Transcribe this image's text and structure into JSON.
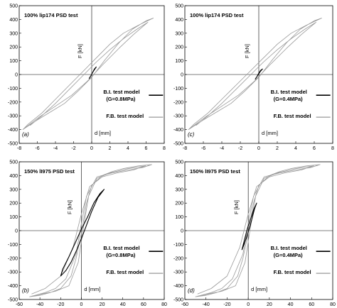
{
  "chart_data": [
    {
      "type": "line",
      "panel_label": "(a)",
      "title": "100% lip174 PSD test",
      "xlabel": "d [mm]",
      "ylabel": "F [kN]",
      "xlim": [
        -8,
        8
      ],
      "ylim": [
        -500,
        500
      ],
      "xticks": [
        "-8",
        "-6",
        "-4",
        "-2",
        "0",
        "2",
        "4",
        "6",
        "8"
      ],
      "yticks": [
        "500",
        "400",
        "300",
        "200",
        "100",
        "0",
        "-100",
        "-200",
        "-300",
        "-400",
        "-500"
      ],
      "legend": [
        "B.I. test model",
        "(G=0.8MPa)",
        "F.B. test model"
      ],
      "series": [
        {
          "name": "F.B. test model",
          "color": "#999999",
          "x": [
            -7.6,
            -6.0,
            -4.5,
            -3.0,
            -1.5,
            0,
            1.5,
            3.0,
            4.5,
            6.0,
            6.8,
            5.2,
            3.5,
            2.0,
            0.5,
            -1.0,
            -2.5,
            -4.0,
            -5.5,
            -7.0,
            -7.6,
            -5.8,
            -4.0,
            -2.2,
            -0.5,
            1.2,
            3.0,
            4.6,
            6.2,
            5.0,
            3.5,
            2.0,
            0.5,
            -1.0,
            -2.5,
            -4.0,
            -5.5,
            -6.8
          ],
          "y": [
            -400,
            -330,
            -270,
            -210,
            -120,
            -20,
            110,
            230,
            330,
            390,
            410,
            360,
            300,
            220,
            120,
            20,
            -80,
            -180,
            -280,
            -360,
            -400,
            -310,
            -230,
            -150,
            -50,
            70,
            190,
            290,
            380,
            330,
            260,
            180,
            90,
            -10,
            -110,
            -210,
            -300,
            -370
          ]
        },
        {
          "name": "B.I. test model",
          "color": "#000000",
          "x": [
            -0.3,
            -0.1,
            0.1,
            0.3,
            0.5,
            0.3,
            0.1,
            -0.1,
            -0.3
          ],
          "y": [
            -30,
            -10,
            15,
            35,
            55,
            40,
            15,
            -10,
            -30
          ]
        }
      ]
    },
    {
      "type": "line",
      "panel_label": "(c)",
      "title": "100% lip174 PSD test",
      "xlabel": "d [mm]",
      "ylabel": "F [kN]",
      "xlim": [
        -8,
        8
      ],
      "ylim": [
        -500,
        500
      ],
      "xticks": [
        "-8",
        "-6",
        "-4",
        "-2",
        "0",
        "2",
        "4",
        "6",
        "8"
      ],
      "yticks": [
        "500",
        "400",
        "300",
        "200",
        "100",
        "0",
        "-100",
        "-200",
        "-300",
        "-400",
        "-500"
      ],
      "legend": [
        "B.I. test model",
        "(G=0.4MPa)",
        "F.B. test model"
      ],
      "series": [
        {
          "name": "F.B. test model",
          "color": "#999999",
          "x": [
            -7.6,
            -6.0,
            -4.5,
            -3.0,
            -1.5,
            0,
            1.5,
            3.0,
            4.5,
            6.0,
            6.8,
            5.2,
            3.5,
            2.0,
            0.5,
            -1.0,
            -2.5,
            -4.0,
            -5.5,
            -7.0,
            -7.6,
            -5.8,
            -4.0,
            -2.2,
            -0.5,
            1.2,
            3.0,
            4.6,
            6.2,
            5.0,
            3.5,
            2.0,
            0.5,
            -1.0,
            -2.5,
            -4.0,
            -5.5,
            -6.8
          ],
          "y": [
            -400,
            -330,
            -270,
            -210,
            -120,
            -20,
            110,
            230,
            330,
            390,
            410,
            360,
            300,
            220,
            120,
            20,
            -80,
            -180,
            -280,
            -360,
            -400,
            -310,
            -230,
            -150,
            -50,
            70,
            190,
            290,
            380,
            330,
            260,
            180,
            90,
            -10,
            -110,
            -210,
            -300,
            -370
          ]
        },
        {
          "name": "B.I. test model",
          "color": "#000000",
          "x": [
            -0.4,
            -0.2,
            0.0,
            0.2,
            0.4,
            0.2,
            0.0,
            -0.2,
            -0.4
          ],
          "y": [
            -35,
            -15,
            5,
            25,
            40,
            30,
            10,
            -15,
            -35
          ]
        }
      ]
    },
    {
      "type": "line",
      "panel_label": "(b)",
      "title": "150% lI975 PSD test",
      "xlabel": "d [mm]",
      "ylabel": "F [kN]",
      "xlim": [
        -60,
        80
      ],
      "ylim": [
        -500,
        500
      ],
      "xticks": [
        "-60",
        "-40",
        "-20",
        "0",
        "20",
        "40",
        "60",
        "80"
      ],
      "yticks": [
        "500",
        "400",
        "300",
        "200",
        "100",
        "0",
        "-100",
        "-200",
        "-300",
        "-400",
        "-500"
      ],
      "legend": [
        "B.I. test model",
        "(G=0.8MPa)",
        "F.B. test model"
      ],
      "series": [
        {
          "name": "F.B. test model",
          "color": "#999999",
          "x": [
            -50,
            -40,
            -30,
            -20,
            -10,
            -5,
            0,
            5,
            10,
            20,
            30,
            40,
            55,
            68,
            60,
            45,
            30,
            15,
            5,
            0,
            -5,
            -15,
            -25,
            -35,
            -45,
            -50,
            -38,
            -25,
            -12,
            -3,
            2,
            7,
            15,
            28,
            45,
            62,
            50,
            35,
            20,
            8,
            0,
            -8,
            -20,
            -35,
            -48
          ],
          "y": [
            -480,
            -470,
            -450,
            -420,
            -330,
            -200,
            -20,
            200,
            330,
            400,
            430,
            450,
            470,
            480,
            460,
            440,
            420,
            390,
            250,
            50,
            -170,
            -350,
            -420,
            -450,
            -470,
            -480,
            -460,
            -440,
            -400,
            -230,
            20,
            250,
            380,
            420,
            450,
            470,
            440,
            420,
            390,
            320,
            120,
            -120,
            -330,
            -420,
            -460
          ]
        },
        {
          "name": "B.I. test model",
          "color": "#000000",
          "x": [
            -20,
            -15,
            -10,
            -5,
            0,
            5,
            10,
            16,
            22,
            18,
            12,
            6,
            0,
            -6,
            -12,
            -18,
            -20
          ],
          "y": [
            -330,
            -290,
            -230,
            -150,
            -60,
            40,
            140,
            240,
            300,
            270,
            200,
            100,
            10,
            -90,
            -190,
            -280,
            -330
          ]
        }
      ]
    },
    {
      "type": "line",
      "panel_label": "(d)",
      "title": "150% lI975 PSD test",
      "xlabel": "d [mm]",
      "ylabel": "F [kN]",
      "xlim": [
        -60,
        80
      ],
      "ylim": [
        -500,
        500
      ],
      "xticks": [
        "-60",
        "-40",
        "-20",
        "0",
        "20",
        "40",
        "60",
        "80"
      ],
      "yticks": [
        "500",
        "400",
        "300",
        "200",
        "100",
        "0",
        "-100",
        "-200",
        "-300",
        "-400",
        "-500"
      ],
      "legend": [
        "B.I. test model",
        "(G=0.4MPa)",
        "F.B. test model"
      ],
      "series": [
        {
          "name": "F.B. test model",
          "color": "#999999",
          "x": [
            -50,
            -40,
            -30,
            -20,
            -10,
            -5,
            0,
            5,
            10,
            20,
            30,
            40,
            55,
            68,
            60,
            45,
            30,
            15,
            5,
            0,
            -5,
            -15,
            -25,
            -35,
            -45,
            -50,
            -38,
            -25,
            -12,
            -3,
            2,
            7,
            15,
            28,
            45,
            62,
            50,
            35,
            20,
            8,
            0,
            -8,
            -20,
            -35,
            -48
          ],
          "y": [
            -480,
            -470,
            -450,
            -420,
            -330,
            -200,
            -20,
            200,
            330,
            400,
            430,
            450,
            470,
            480,
            460,
            440,
            420,
            390,
            250,
            50,
            -170,
            -350,
            -420,
            -450,
            -470,
            -480,
            -460,
            -440,
            -400,
            -230,
            20,
            250,
            380,
            420,
            450,
            470,
            440,
            420,
            390,
            320,
            120,
            -120,
            -330,
            -420,
            -460
          ]
        },
        {
          "name": "B.I. test model",
          "color": "#000000",
          "x": [
            -6,
            -4,
            -2,
            0,
            2,
            4,
            6,
            8,
            5,
            2,
            -1,
            -4,
            -6
          ],
          "y": [
            -140,
            -100,
            -60,
            -10,
            40,
            100,
            160,
            200,
            150,
            80,
            10,
            -80,
            -140
          ]
        }
      ]
    }
  ]
}
